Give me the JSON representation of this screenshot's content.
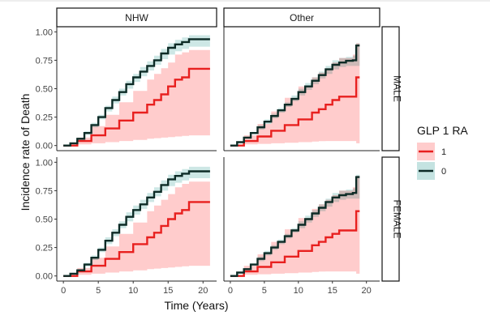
{
  "chart_data": {
    "type": "line",
    "subtype": "step-cumulative-incidence-with-ribbons",
    "title": "",
    "xlabel": "Time (Years)",
    "ylabel": "Incidence rate of Death",
    "xlim": [
      0,
      21
    ],
    "ylim": [
      0,
      1
    ],
    "x_ticks": [
      0,
      5,
      10,
      15,
      20
    ],
    "y_ticks": [
      0,
      0.25,
      0.5,
      0.75,
      1.0
    ],
    "x_tick_labels": [
      "0",
      "5",
      "10",
      "15",
      "20"
    ],
    "y_tick_labels": [
      "0.00",
      "0.25",
      "0.50",
      "0.75",
      "1.00"
    ],
    "facet_columns": [
      "NHW",
      "Other"
    ],
    "facet_rows": [
      "MALE",
      "FEMALE"
    ],
    "legend": {
      "title": "GLP 1 RA",
      "position": "right",
      "entries": [
        {
          "label": "1",
          "line_color": "#e8201f",
          "fill_color": "#ffcccc"
        },
        {
          "label": "0",
          "line_color": "#0d2b26",
          "fill_color": "#c4e3e1"
        }
      ]
    },
    "colors": {
      "series_1": "#e8201f",
      "series_0": "#0d2b26",
      "band_1": "#ffcccc",
      "band_0": "#c4e3e1",
      "band_overlap": "#c9c1bd"
    },
    "panels": [
      {
        "column": "NHW",
        "row": "MALE",
        "series": [
          {
            "name": "0",
            "x": [
              0,
              1,
              2,
              3,
              4,
              5,
              6,
              7,
              8,
              9,
              10,
              11,
              12,
              13,
              14,
              15,
              16,
              17,
              18,
              21
            ],
            "y": [
              0.0,
              0.02,
              0.06,
              0.11,
              0.18,
              0.25,
              0.33,
              0.4,
              0.47,
              0.54,
              0.6,
              0.65,
              0.7,
              0.75,
              0.81,
              0.86,
              0.89,
              0.91,
              0.935,
              0.935
            ],
            "lower": [
              0.0,
              0.015,
              0.05,
              0.095,
              0.16,
              0.23,
              0.3,
              0.37,
              0.44,
              0.5,
              0.56,
              0.61,
              0.66,
              0.71,
              0.76,
              0.8,
              0.83,
              0.85,
              0.87,
              0.87
            ],
            "upper": [
              0.0,
              0.025,
              0.07,
              0.125,
              0.2,
              0.27,
              0.35,
              0.43,
              0.5,
              0.57,
              0.63,
              0.69,
              0.74,
              0.79,
              0.85,
              0.9,
              0.93,
              0.95,
              0.97,
              0.97
            ]
          },
          {
            "name": "1",
            "x": [
              0,
              2,
              4,
              6,
              8,
              10,
              12,
              13,
              14,
              15,
              16,
              17,
              18,
              21
            ],
            "y": [
              0.0,
              0.04,
              0.09,
              0.15,
              0.22,
              0.29,
              0.36,
              0.4,
              0.45,
              0.52,
              0.58,
              0.6,
              0.675,
              0.675
            ],
            "lower": [
              0.0,
              0.01,
              0.02,
              0.03,
              0.04,
              0.05,
              0.06,
              0.065,
              0.07,
              0.075,
              0.08,
              0.085,
              0.09,
              0.09
            ],
            "upper": [
              0.0,
              0.07,
              0.17,
              0.27,
              0.38,
              0.48,
              0.58,
              0.63,
              0.68,
              0.73,
              0.8,
              0.82,
              0.84,
              0.84
            ]
          }
        ]
      },
      {
        "column": "Other",
        "row": "MALE",
        "series": [
          {
            "name": "0",
            "x": [
              0,
              1,
              2,
              3,
              4,
              5,
              6,
              7,
              8,
              9,
              10,
              11,
              12,
              13,
              14,
              15,
              16,
              17,
              18,
              18.5,
              19
            ],
            "y": [
              0.0,
              0.03,
              0.07,
              0.11,
              0.16,
              0.21,
              0.26,
              0.31,
              0.36,
              0.41,
              0.47,
              0.52,
              0.57,
              0.62,
              0.67,
              0.71,
              0.73,
              0.745,
              0.75,
              0.88,
              0.88
            ],
            "lower": [
              0.0,
              0.025,
              0.06,
              0.1,
              0.14,
              0.19,
              0.24,
              0.29,
              0.34,
              0.39,
              0.44,
              0.49,
              0.54,
              0.59,
              0.63,
              0.67,
              0.69,
              0.7,
              0.7,
              0.7,
              0.7
            ],
            "upper": [
              0.0,
              0.035,
              0.08,
              0.12,
              0.18,
              0.23,
              0.28,
              0.33,
              0.38,
              0.44,
              0.5,
              0.55,
              0.6,
              0.65,
              0.7,
              0.75,
              0.77,
              0.78,
              0.79,
              0.9,
              0.9
            ]
          },
          {
            "name": "1",
            "x": [
              0,
              2,
              4,
              6,
              8,
              10,
              12,
              13,
              14,
              15,
              16,
              18,
              18.5,
              19
            ],
            "y": [
              0.0,
              0.04,
              0.08,
              0.13,
              0.18,
              0.23,
              0.29,
              0.32,
              0.36,
              0.4,
              0.43,
              0.43,
              0.6,
              0.6
            ],
            "lower": [
              0.0,
              0.01,
              0.015,
              0.02,
              0.025,
              0.03,
              0.035,
              0.038,
              0.04,
              0.04,
              0.04,
              0.04,
              0.02,
              0.02
            ],
            "upper": [
              0.0,
              0.09,
              0.19,
              0.3,
              0.42,
              0.52,
              0.6,
              0.64,
              0.68,
              0.73,
              0.77,
              0.8,
              0.9,
              0.9
            ]
          }
        ]
      },
      {
        "column": "NHW",
        "row": "FEMALE",
        "series": [
          {
            "name": "0",
            "x": [
              0,
              1,
              2,
              3,
              4,
              5,
              6,
              7,
              8,
              9,
              10,
              11,
              12,
              13,
              14,
              15,
              16,
              17,
              18,
              21
            ],
            "y": [
              0.0,
              0.02,
              0.05,
              0.1,
              0.16,
              0.23,
              0.31,
              0.38,
              0.45,
              0.52,
              0.58,
              0.63,
              0.69,
              0.74,
              0.8,
              0.85,
              0.88,
              0.9,
              0.92,
              0.92
            ],
            "lower": [
              0.0,
              0.015,
              0.04,
              0.085,
              0.14,
              0.21,
              0.28,
              0.35,
              0.42,
              0.48,
              0.54,
              0.59,
              0.65,
              0.7,
              0.75,
              0.79,
              0.82,
              0.84,
              0.86,
              0.86
            ],
            "upper": [
              0.0,
              0.025,
              0.06,
              0.115,
              0.18,
              0.25,
              0.34,
              0.41,
              0.48,
              0.56,
              0.62,
              0.67,
              0.73,
              0.78,
              0.84,
              0.89,
              0.92,
              0.94,
              0.96,
              0.96
            ]
          },
          {
            "name": "1",
            "x": [
              0,
              2,
              4,
              6,
              8,
              10,
              12,
              13,
              14,
              15,
              16,
              17,
              18,
              21
            ],
            "y": [
              0.0,
              0.04,
              0.09,
              0.15,
              0.21,
              0.28,
              0.34,
              0.38,
              0.44,
              0.5,
              0.55,
              0.58,
              0.65,
              0.65
            ],
            "lower": [
              0.0,
              0.01,
              0.02,
              0.03,
              0.04,
              0.05,
              0.06,
              0.065,
              0.07,
              0.075,
              0.08,
              0.085,
              0.09,
              0.09
            ],
            "upper": [
              0.0,
              0.07,
              0.16,
              0.26,
              0.37,
              0.47,
              0.57,
              0.62,
              0.67,
              0.72,
              0.78,
              0.81,
              0.83,
              0.83
            ]
          }
        ]
      },
      {
        "column": "Other",
        "row": "FEMALE",
        "series": [
          {
            "name": "0",
            "x": [
              0,
              1,
              2,
              3,
              4,
              5,
              6,
              7,
              8,
              9,
              10,
              11,
              12,
              13,
              14,
              15,
              16,
              17,
              18,
              18.5,
              19
            ],
            "y": [
              0.0,
              0.03,
              0.06,
              0.1,
              0.15,
              0.2,
              0.25,
              0.3,
              0.35,
              0.4,
              0.45,
              0.5,
              0.55,
              0.6,
              0.65,
              0.69,
              0.71,
              0.72,
              0.73,
              0.87,
              0.87
            ],
            "lower": [
              0.0,
              0.025,
              0.05,
              0.09,
              0.13,
              0.18,
              0.23,
              0.28,
              0.33,
              0.38,
              0.42,
              0.47,
              0.52,
              0.57,
              0.61,
              0.65,
              0.67,
              0.68,
              0.68,
              0.68,
              0.68
            ],
            "upper": [
              0.0,
              0.035,
              0.07,
              0.11,
              0.17,
              0.22,
              0.27,
              0.32,
              0.37,
              0.42,
              0.48,
              0.53,
              0.58,
              0.63,
              0.68,
              0.73,
              0.75,
              0.76,
              0.77,
              0.89,
              0.89
            ]
          },
          {
            "name": "1",
            "x": [
              0,
              2,
              4,
              6,
              8,
              10,
              12,
              13,
              14,
              15,
              16,
              18,
              18.5,
              19
            ],
            "y": [
              0.0,
              0.04,
              0.08,
              0.12,
              0.17,
              0.22,
              0.27,
              0.3,
              0.34,
              0.37,
              0.4,
              0.4,
              0.57,
              0.57
            ],
            "lower": [
              0.0,
              0.01,
              0.015,
              0.02,
              0.025,
              0.03,
              0.035,
              0.038,
              0.04,
              0.04,
              0.04,
              0.04,
              0.02,
              0.02
            ],
            "upper": [
              0.0,
              0.09,
              0.19,
              0.3,
              0.41,
              0.51,
              0.59,
              0.63,
              0.67,
              0.71,
              0.75,
              0.78,
              0.88,
              0.88
            ]
          }
        ]
      }
    ]
  }
}
